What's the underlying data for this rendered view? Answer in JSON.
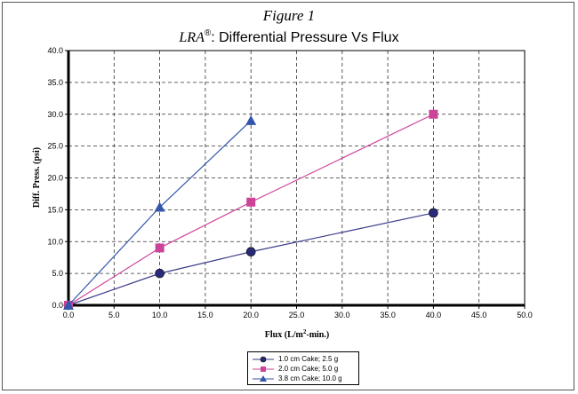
{
  "figure_label": "Figure 1",
  "title_prefix": "LRA",
  "title_mark": "®",
  "title_rest": ": Differential Pressure Vs Flux",
  "chart_data": {
    "type": "line",
    "xlabel_main": "Flux (L/m",
    "xlabel_sup": "2",
    "xlabel_tail": "-min.)",
    "ylabel": "Diff. Press. (psi)",
    "xlim": [
      0,
      50
    ],
    "ylim": [
      0,
      40
    ],
    "xticks": [
      "0.0",
      "5.0",
      "10.0",
      "15.0",
      "20.0",
      "25.0",
      "30.0",
      "35.0",
      "40.0",
      "45.0",
      "50.0"
    ],
    "yticks": [
      "0.0",
      "5.0",
      "10.0",
      "15.0",
      "20.0",
      "25.0",
      "30.0",
      "35.0",
      "40.0"
    ],
    "grid": true,
    "legend_position": "bottom-center",
    "series": [
      {
        "name": "1.0 cm Cake; 2.5 g",
        "color": "#2a2a7a",
        "line_color": "#3b3b8a",
        "marker": "circle",
        "x": [
          0,
          10,
          20,
          40
        ],
        "y": [
          0,
          5,
          8.4,
          14.5
        ]
      },
      {
        "name": "2.0 cm Cake; 5.0 g",
        "color": "#cc4499",
        "line_color": "#cc4499",
        "marker": "square",
        "x": [
          0,
          10,
          20,
          40
        ],
        "y": [
          0,
          9,
          16.2,
          30
        ]
      },
      {
        "name": "3.8 cm Cake; 10.0 g",
        "color": "#3355aa",
        "line_color": "#3355aa",
        "marker": "triangle",
        "x": [
          0,
          10,
          20
        ],
        "y": [
          0,
          15.4,
          29
        ]
      }
    ]
  }
}
